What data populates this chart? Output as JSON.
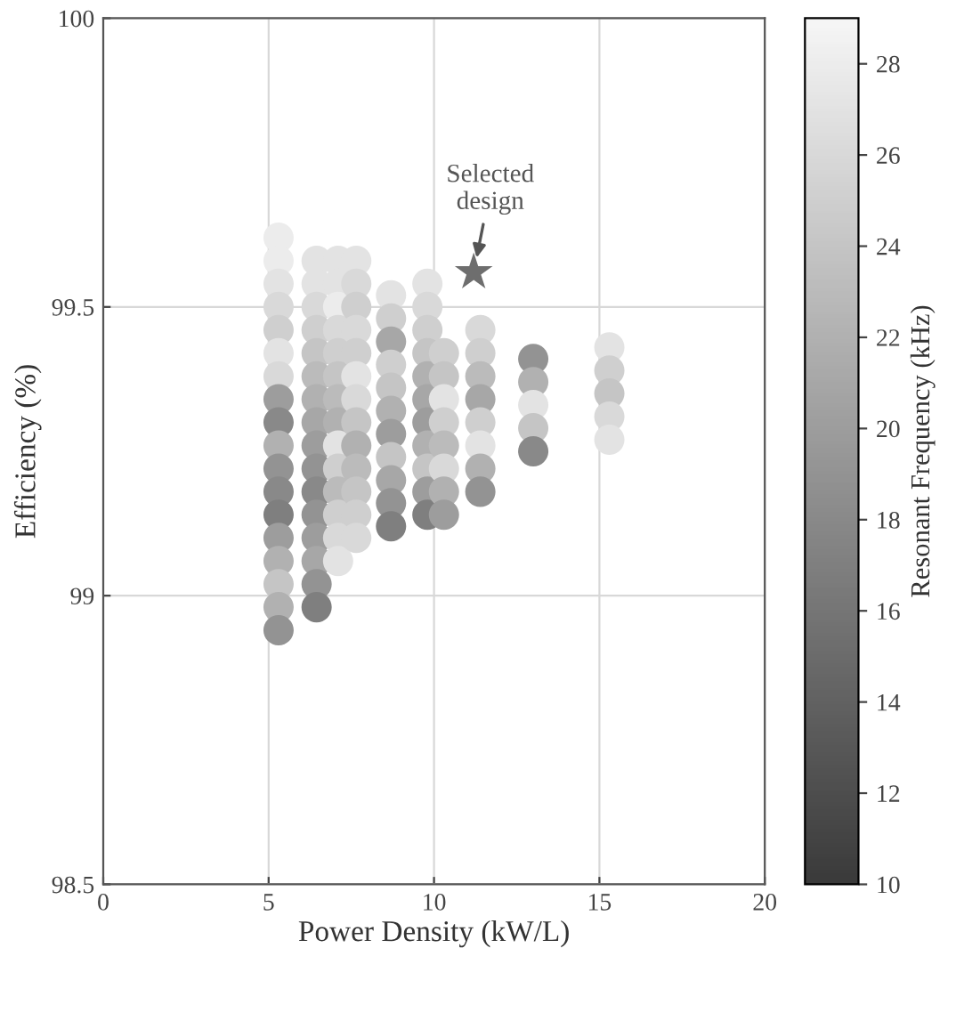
{
  "chart_data": {
    "type": "scatter",
    "xlabel": "Power Density (kW/L)",
    "ylabel": "Efficiency (%)",
    "clabel": "Resonant Frequency (kHz)",
    "xlim": [
      0,
      20
    ],
    "xticks": [
      0,
      5,
      10,
      15,
      20
    ],
    "ylim": [
      98.5,
      100
    ],
    "yticks": [
      98.5,
      99,
      99.5,
      100
    ],
    "clim": [
      10,
      29
    ],
    "cticks": [
      10,
      12,
      14,
      16,
      18,
      20,
      22,
      24,
      26,
      28
    ],
    "grid": true,
    "marker": "circle",
    "annotations": [
      {
        "text": "Selected\ndesign",
        "x": 11.2,
        "y": 99.56
      }
    ],
    "x": [
      5.3,
      5.3,
      5.3,
      5.3,
      5.3,
      5.3,
      5.3,
      5.3,
      5.3,
      5.3,
      5.3,
      5.3,
      5.3,
      5.3,
      5.3,
      5.3,
      5.3,
      5.3,
      6.45,
      6.45,
      6.45,
      6.45,
      6.45,
      6.45,
      6.45,
      6.45,
      6.45,
      6.45,
      6.45,
      6.45,
      6.45,
      6.45,
      6.45,
      6.45,
      7.1,
      7.1,
      7.1,
      7.1,
      7.1,
      7.1,
      7.1,
      7.1,
      7.1,
      7.1,
      7.1,
      7.1,
      7.1,
      7.1,
      7.65,
      7.65,
      7.65,
      7.65,
      7.65,
      7.65,
      7.65,
      7.65,
      7.65,
      7.65,
      7.65,
      7.65,
      7.65,
      8.7,
      8.7,
      8.7,
      8.7,
      8.7,
      8.7,
      8.7,
      8.7,
      8.7,
      8.7,
      8.7,
      9.8,
      9.8,
      9.8,
      9.8,
      9.8,
      9.8,
      9.8,
      9.8,
      9.8,
      9.8,
      9.8,
      10.3,
      10.3,
      10.3,
      10.3,
      10.3,
      10.3,
      10.3,
      10.3,
      11.4,
      11.4,
      11.4,
      11.4,
      11.4,
      11.4,
      11.4,
      11.4,
      13.0,
      13.0,
      13.0,
      13.0,
      13.0,
      15.3,
      15.3,
      15.3,
      15.3,
      15.3
    ],
    "values": [
      99.62,
      99.58,
      99.54,
      99.5,
      99.46,
      99.42,
      99.38,
      99.34,
      99.3,
      99.26,
      99.22,
      99.18,
      99.14,
      99.1,
      99.06,
      99.02,
      98.98,
      98.94,
      99.58,
      99.54,
      99.5,
      99.46,
      99.42,
      99.38,
      99.34,
      99.3,
      99.26,
      99.22,
      99.18,
      99.14,
      99.1,
      99.06,
      99.02,
      98.98,
      99.58,
      99.54,
      99.5,
      99.46,
      99.42,
      99.38,
      99.34,
      99.3,
      99.26,
      99.22,
      99.18,
      99.14,
      99.1,
      99.06,
      99.58,
      99.54,
      99.5,
      99.46,
      99.42,
      99.38,
      99.34,
      99.3,
      99.26,
      99.22,
      99.18,
      99.14,
      99.1,
      99.52,
      99.48,
      99.44,
      99.4,
      99.36,
      99.32,
      99.28,
      99.24,
      99.2,
      99.16,
      99.12,
      99.54,
      99.5,
      99.46,
      99.42,
      99.38,
      99.34,
      99.3,
      99.26,
      99.22,
      99.18,
      99.14,
      99.42,
      99.38,
      99.34,
      99.3,
      99.26,
      99.22,
      99.18,
      99.14,
      99.46,
      99.42,
      99.38,
      99.34,
      99.3,
      99.26,
      99.22,
      99.18,
      99.41,
      99.37,
      99.33,
      99.29,
      99.25,
      99.43,
      99.39,
      99.35,
      99.31,
      99.27
    ],
    "cvalues": [
      28,
      28,
      27,
      26,
      25,
      27,
      26,
      20,
      18,
      22,
      19,
      18,
      17,
      20,
      22,
      24,
      22,
      19,
      27,
      27,
      26,
      25,
      24,
      23,
      22,
      21,
      20,
      19,
      18,
      19,
      20,
      21,
      19,
      17,
      27,
      27,
      28,
      26,
      25,
      24,
      23,
      22,
      27,
      25,
      23,
      25,
      26,
      27,
      27,
      26,
      25,
      26,
      25,
      27,
      26,
      24,
      22,
      23,
      24,
      25,
      26,
      27,
      25,
      21,
      25,
      24,
      22,
      20,
      24,
      21,
      19,
      17,
      27,
      26,
      25,
      24,
      22,
      21,
      20,
      22,
      24,
      20,
      17,
      25,
      24,
      27,
      25,
      23,
      26,
      22,
      20,
      26,
      25,
      23,
      21,
      25,
      27,
      22,
      19,
      19,
      22,
      27,
      24,
      18,
      27,
      25,
      24,
      26,
      27
    ]
  }
}
